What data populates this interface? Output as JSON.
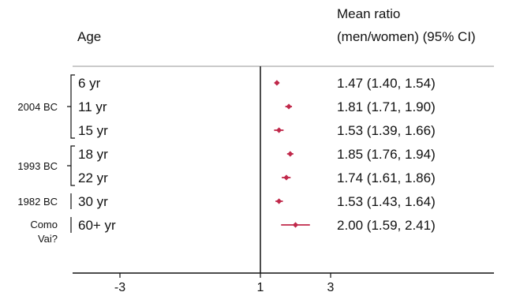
{
  "chart_data": {
    "type": "forest",
    "header": {
      "left": "Age",
      "right_line1": "Mean ratio",
      "right_line2": "(men/women) (95% CI)"
    },
    "x_ticks": [
      "-3",
      "1",
      "3"
    ],
    "x_tick_values": [
      -3,
      1,
      3
    ],
    "reference_line": 1,
    "marker_color": "#c0284a",
    "groups": [
      {
        "name": "2004 BC",
        "rows": [
          0,
          1,
          2
        ]
      },
      {
        "name": "1993 BC",
        "rows": [
          3,
          4
        ]
      },
      {
        "name": "1982 BC",
        "rows": [
          5
        ]
      },
      {
        "name_lines": [
          "Como",
          "Vai?"
        ],
        "rows": [
          6
        ]
      }
    ],
    "rows": [
      {
        "age": "6 yr",
        "mean": 1.47,
        "lo": 1.4,
        "hi": 1.54,
        "text": "1.47 (1.40, 1.54)"
      },
      {
        "age": "11 yr",
        "mean": 1.81,
        "lo": 1.71,
        "hi": 1.9,
        "text": "1.81 (1.71, 1.90)"
      },
      {
        "age": "15 yr",
        "mean": 1.53,
        "lo": 1.39,
        "hi": 1.66,
        "text": "1.53 (1.39, 1.66)"
      },
      {
        "age": "18 yr",
        "mean": 1.85,
        "lo": 1.76,
        "hi": 1.94,
        "text": "1.85 (1.76, 1.94)"
      },
      {
        "age": "22 yr",
        "mean": 1.74,
        "lo": 1.61,
        "hi": 1.86,
        "text": "1.74 (1.61, 1.86)"
      },
      {
        "age": "30 yr",
        "mean": 1.53,
        "lo": 1.43,
        "hi": 1.64,
        "text": "1.53 (1.43, 1.64)"
      },
      {
        "age": "60+ yr",
        "mean": 2.0,
        "lo": 1.59,
        "hi": 2.41,
        "text": "2.00 (1.59, 2.41)"
      }
    ]
  }
}
